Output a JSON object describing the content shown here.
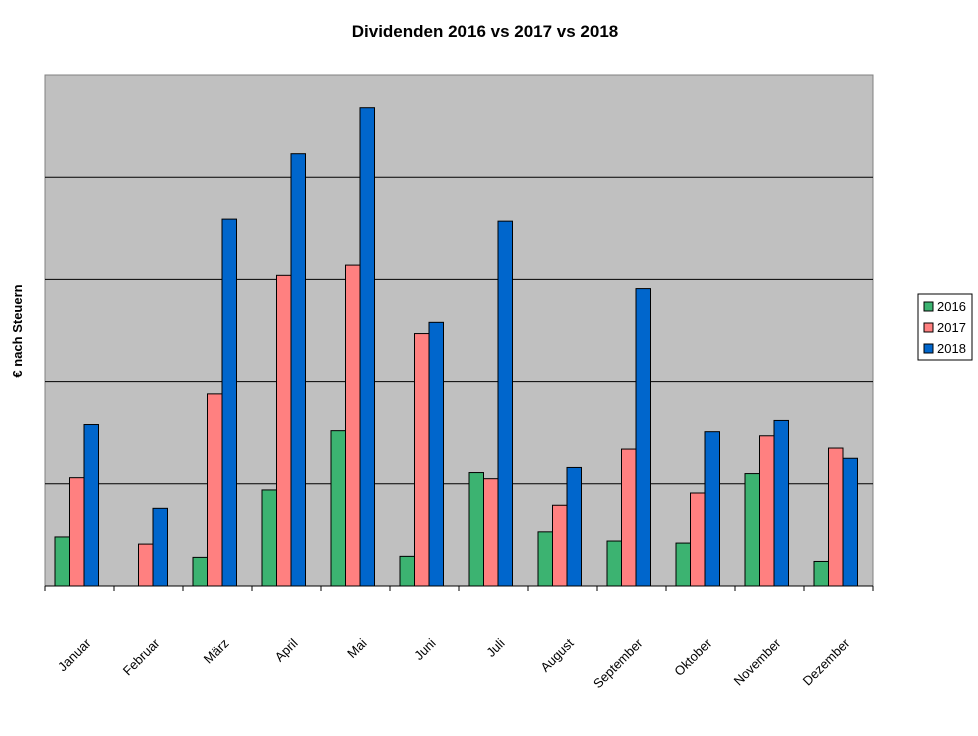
{
  "chart_data": {
    "type": "bar",
    "title": "Dividenden 2016 vs 2017 vs 2018",
    "xlabel": "",
    "ylabel": "€ nach Steuern",
    "ylim": [
      0,
      500
    ],
    "grid": true,
    "legend": "right",
    "categories": [
      "Januar",
      "Februar",
      "März",
      "April",
      "Mai",
      "Juni",
      "Juli",
      "August",
      "September",
      "Oktober",
      "November",
      "Dezember"
    ],
    "series": [
      {
        "name": "2016",
        "color": "#3cb371",
        "values": [
          48,
          0,
          28,
          94,
          152,
          29,
          111,
          53,
          44,
          42,
          110,
          24
        ]
      },
      {
        "name": "2017",
        "color": "#ff8080",
        "values": [
          106,
          41,
          188,
          304,
          314,
          247,
          105,
          79,
          134,
          91,
          147,
          135
        ]
      },
      {
        "name": "2018",
        "color": "#0066cc",
        "values": [
          158,
          76,
          359,
          423,
          468,
          258,
          357,
          116,
          291,
          151,
          162,
          125
        ]
      }
    ]
  }
}
